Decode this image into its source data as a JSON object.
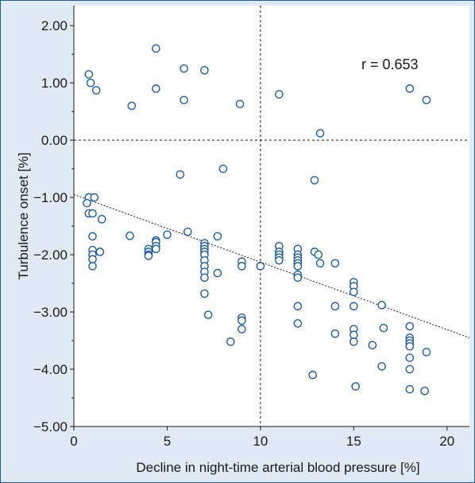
{
  "chart_data": {
    "type": "scatter",
    "title": "",
    "xlabel": "Decline in night-time arterial blood pressure [%]",
    "ylabel": "Turbulence onset [%]",
    "xlim": [
      0,
      21.2
    ],
    "ylim": [
      -5.0,
      2.35
    ],
    "x_ticks": [
      0,
      5,
      10,
      15,
      20
    ],
    "x_tick_labels": [
      "0",
      "5",
      "10",
      "15",
      "20"
    ],
    "y_ticks": [
      2.0,
      1.0,
      0.0,
      -1.0,
      -2.0,
      -3.0,
      -4.0,
      -5.0
    ],
    "y_tick_labels": [
      "2.00",
      "1.00",
      "0.00",
      "−1.00",
      "−2.00",
      "−3.00",
      "−4.00",
      "−5.00"
    ],
    "annotation": "r = 0.653",
    "reference_lines": {
      "x": 10,
      "y": 0
    },
    "regression_line": {
      "x": [
        0,
        21.2
      ],
      "y": [
        -0.95,
        -3.45
      ]
    },
    "grid": false,
    "legend": "none",
    "colors": {
      "marker": "#1f5d9e",
      "background": "#dfeaf4",
      "plot_background": "#ffffff",
      "frame": "#1f5d9e"
    },
    "series": [
      {
        "x": [
          0.8,
          0.9,
          1.2,
          4.4,
          4.4,
          5.9,
          5.9,
          7.0,
          3.1,
          8.9,
          11.0,
          18.0,
          18.9,
          13.2,
          5.7,
          8.0,
          12.9,
          0.8,
          1.1,
          0.7,
          0.8,
          1.0,
          1.5,
          1.0,
          1.0,
          1.4,
          1.0,
          1.0,
          1.0,
          3.0,
          4.0,
          4.0,
          4.0,
          4.0,
          4.4,
          4.4,
          4.4,
          4.4,
          5.0,
          6.1,
          7.0,
          7.0,
          7.0,
          7.0,
          7.0,
          7.0,
          7.0,
          7.0,
          7.0,
          7.0,
          7.7,
          7.7,
          7.2,
          8.4,
          9.0,
          9.0,
          9.0,
          9.0,
          9.0,
          10.0,
          11.0,
          11.0,
          11.0,
          11.0,
          11.0,
          12.0,
          12.0,
          12.0,
          12.0,
          12.0,
          12.0,
          12.0,
          12.0,
          12.0,
          12.0,
          12.8,
          12.9,
          13.1,
          13.2,
          14.0,
          14.0,
          14.0,
          15.0,
          15.0,
          15.0,
          15.0,
          15.0,
          15.0,
          15.0,
          15.1,
          16.0,
          16.5,
          16.6,
          16.5,
          18.0,
          18.0,
          18.0,
          18.0,
          18.0,
          18.0,
          18.0,
          18.0,
          18.8,
          18.9
        ],
        "y": [
          1.15,
          1.0,
          0.87,
          1.6,
          0.9,
          1.25,
          0.7,
          1.22,
          0.6,
          0.63,
          0.8,
          0.9,
          0.7,
          0.12,
          -0.6,
          -0.5,
          -0.7,
          -1.0,
          -1.0,
          -1.1,
          -1.28,
          -1.28,
          -1.38,
          -1.68,
          -1.92,
          -1.95,
          -2.0,
          -2.08,
          -2.2,
          -1.67,
          -1.9,
          -1.95,
          -2.0,
          -2.02,
          -1.75,
          -1.78,
          -1.85,
          -1.9,
          -1.65,
          -1.6,
          -1.8,
          -1.85,
          -1.9,
          -1.95,
          -2.0,
          -2.1,
          -2.2,
          -2.3,
          -2.4,
          -2.68,
          -1.68,
          -2.32,
          -3.05,
          -3.52,
          -2.12,
          -2.2,
          -3.1,
          -3.15,
          -3.3,
          -2.2,
          -1.85,
          -1.95,
          -2.0,
          -2.05,
          -2.1,
          -1.9,
          -2.0,
          -2.05,
          -2.1,
          -2.15,
          -2.2,
          -2.35,
          -2.4,
          -2.9,
          -3.2,
          -4.1,
          -1.95,
          -2.0,
          -2.15,
          -2.15,
          -2.9,
          -3.38,
          -2.48,
          -2.55,
          -2.65,
          -2.9,
          -3.3,
          -3.4,
          -3.52,
          -4.3,
          -3.58,
          -2.88,
          -3.28,
          -3.95,
          -3.25,
          -3.45,
          -3.5,
          -3.55,
          -3.6,
          -3.8,
          -4.0,
          -4.35,
          -4.38,
          -3.7
        ]
      }
    ]
  }
}
